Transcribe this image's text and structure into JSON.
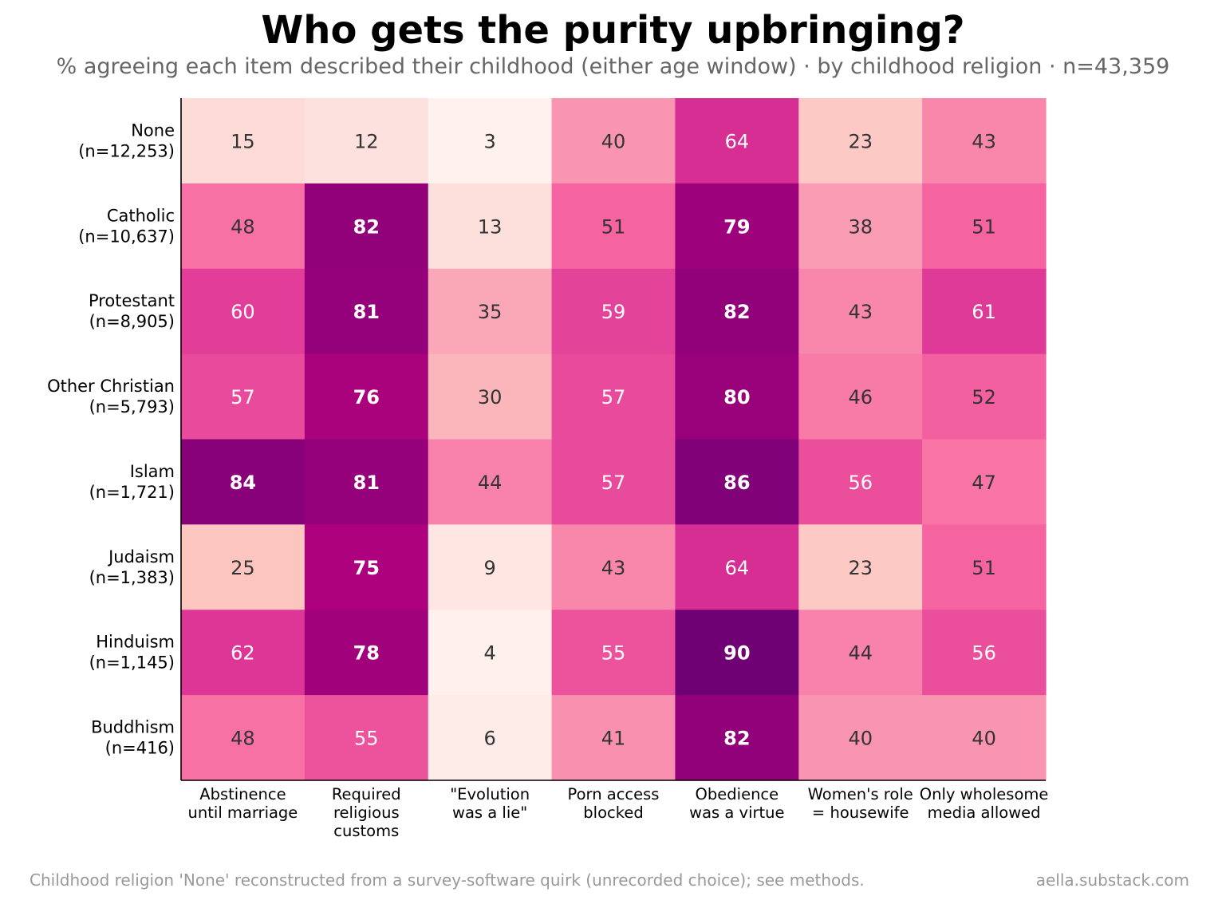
{
  "title": "Who gets the purity upbringing?",
  "subtitle": "% agreeing each item described their childhood (either age window) · by childhood religion · n=43,359",
  "footer": {
    "note": "Childhood religion 'None' reconstructed from a survey-software quirk (unrecorded choice); see methods.",
    "credit": "aella.substack.com"
  },
  "chart_data": {
    "type": "heatmap",
    "title": "Who gets the purity upbringing?",
    "subtitle": "% agreeing each item described their childhood (either age window) · by childhood religion · n=43,359",
    "rows": [
      {
        "label": "None",
        "n": "(n=12,253)"
      },
      {
        "label": "Catholic",
        "n": "(n=10,637)"
      },
      {
        "label": "Protestant",
        "n": "(n=8,905)"
      },
      {
        "label": "Other Christian",
        "n": "(n=5,793)"
      },
      {
        "label": "Islam",
        "n": "(n=1,721)"
      },
      {
        "label": "Judaism",
        "n": "(n=1,383)"
      },
      {
        "label": "Hinduism",
        "n": "(n=1,145)"
      },
      {
        "label": "Buddhism",
        "n": "(n=416)"
      }
    ],
    "columns": [
      [
        "Abstinence",
        "until marriage"
      ],
      [
        "Required",
        "religious",
        "customs"
      ],
      [
        "\"Evolution",
        "was a lie\""
      ],
      [
        "Porn access",
        "blocked"
      ],
      [
        "Obedience",
        "was a virtue"
      ],
      [
        "Women's role",
        "= housewife"
      ],
      [
        "Only wholesome",
        "media allowed"
      ]
    ],
    "values": [
      [
        15,
        12,
        3,
        40,
        64,
        23,
        43
      ],
      [
        48,
        82,
        13,
        51,
        79,
        38,
        51
      ],
      [
        60,
        81,
        35,
        59,
        82,
        43,
        61
      ],
      [
        57,
        76,
        30,
        57,
        80,
        46,
        52
      ],
      [
        84,
        81,
        44,
        57,
        86,
        56,
        47
      ],
      [
        25,
        75,
        9,
        43,
        64,
        23,
        51
      ],
      [
        62,
        78,
        4,
        55,
        90,
        44,
        56
      ],
      [
        48,
        55,
        6,
        41,
        82,
        40,
        40
      ]
    ],
    "colormap": "RdPu",
    "vmin": 0,
    "vmax": 100,
    "bold_threshold": 75,
    "text_colors": {
      "dark": "#333333",
      "light": "#ffffff"
    }
  }
}
